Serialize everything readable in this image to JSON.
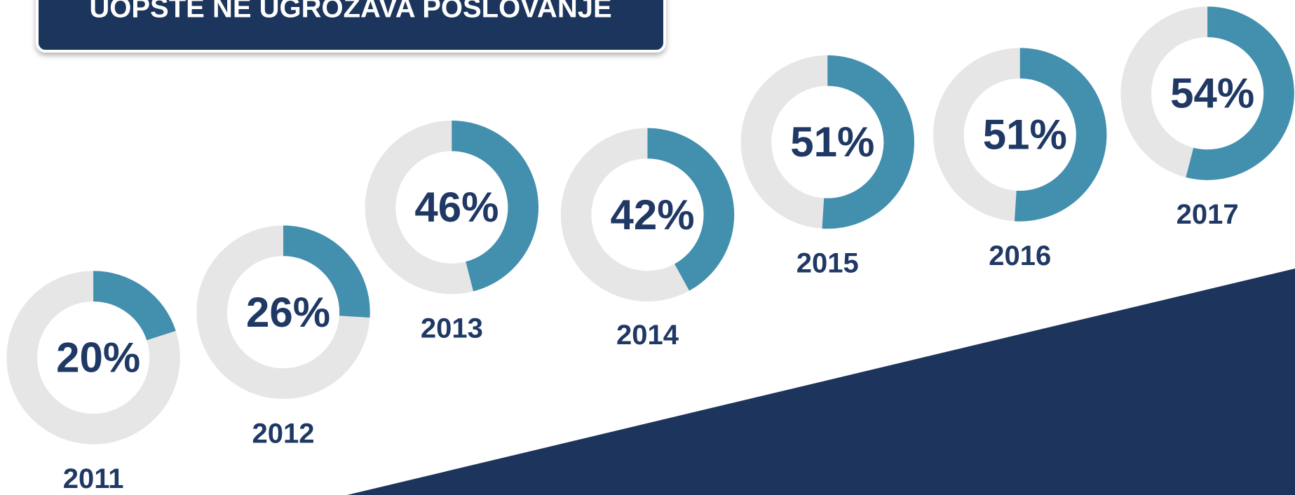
{
  "chart_data": {
    "type": "donut",
    "title": "UOPŠTE NE UGROŽAVA POSLOVANJE",
    "categories": [
      "2011",
      "2012",
      "2013",
      "2014",
      "2015",
      "2016",
      "2017"
    ],
    "values": [
      20,
      26,
      46,
      42,
      51,
      51,
      54
    ],
    "value_labels": [
      "20%",
      "26%",
      "46%",
      "42%",
      "51%",
      "51%",
      "54%"
    ],
    "color": "#428fae",
    "track_color": "#e6e6e6",
    "total": 100
  }
}
